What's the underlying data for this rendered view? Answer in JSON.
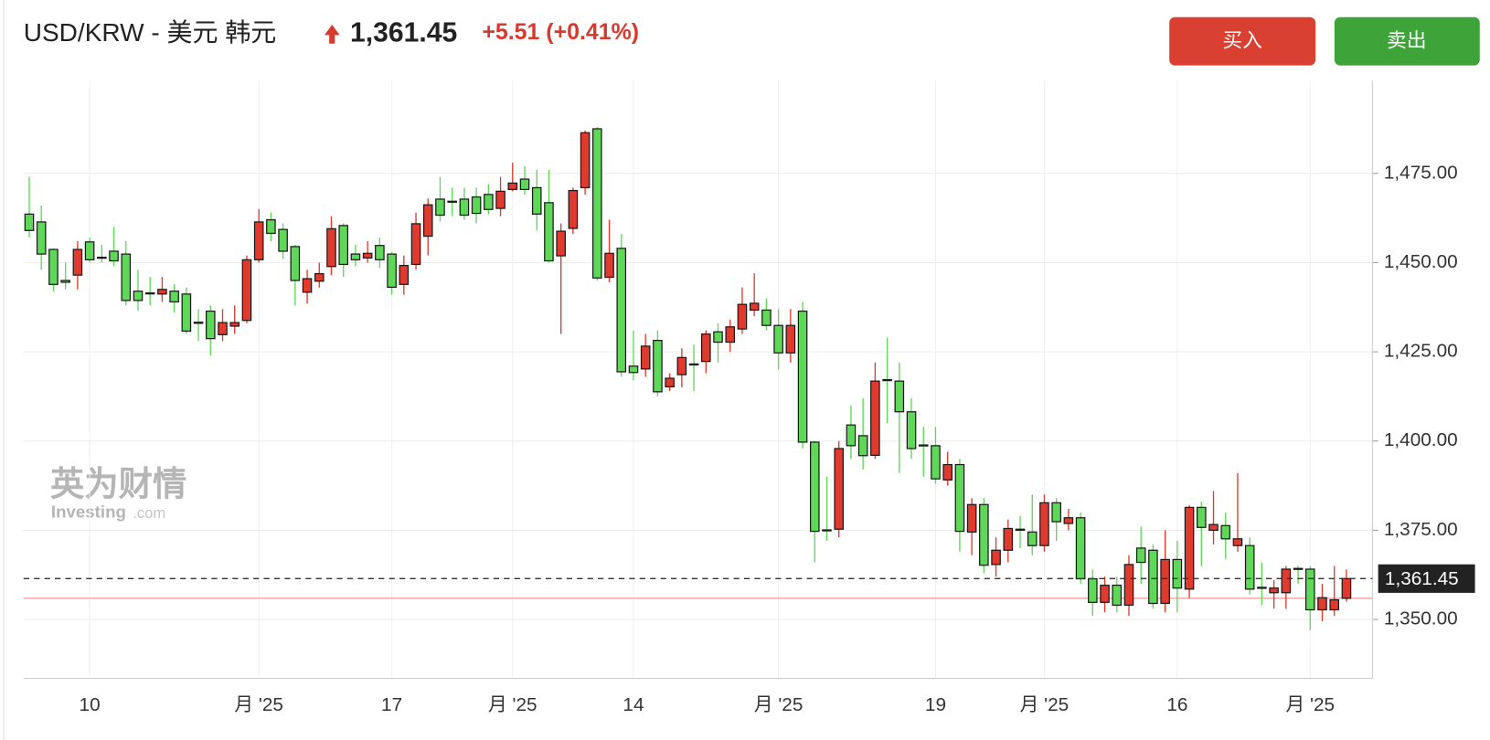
{
  "header": {
    "title": "USD/KRW - 美元 韩元",
    "price": "1,361.45",
    "change": "+5.51 (+0.41%)"
  },
  "buttons": [
    "买入",
    "卖出"
  ],
  "watermark": {
    "cn": "英为财情",
    "en": "Investing",
    "suffix": ".com"
  },
  "chart_data": {
    "type": "candlestick",
    "categories": [
      null,
      null,
      null,
      null,
      null,
      "10",
      null,
      null,
      null,
      null,
      null,
      null,
      null,
      null,
      null,
      null,
      null,
      null,
      null,
      "月 '25",
      null,
      null,
      null,
      null,
      null,
      null,
      null,
      null,
      null,
      null,
      "17",
      null,
      null,
      null,
      null,
      null,
      null,
      null,
      null,
      null,
      "月 '25",
      null,
      null,
      null,
      null,
      null,
      null,
      null,
      null,
      null,
      "14",
      null,
      null,
      null,
      null,
      null,
      null,
      null,
      null,
      null,
      null,
      null,
      "月 '25",
      null,
      null,
      null,
      null,
      null,
      null,
      null,
      null,
      null,
      null,
      null,
      null,
      "19",
      null,
      null,
      null,
      null,
      null,
      null,
      null,
      null,
      "月 '25",
      null,
      null,
      null,
      null,
      null,
      null,
      null,
      null,
      null,
      null,
      "16",
      null,
      null,
      null,
      null,
      null,
      null,
      null,
      null,
      null,
      null,
      "月 '25",
      null,
      null,
      null
    ],
    "open": [
      1463.6,
      1461.4,
      1453.7,
      1445,
      1446.5,
      1455.8,
      1451.5,
      1453.2,
      1452.4,
      1442,
      1441.5,
      1441.2,
      1442,
      1441.2,
      1433.3,
      1436.4,
      1429.8,
      1432.2,
      1433.8,
      1450.8,
      1462,
      1459.3,
      1454.5,
      1441.7,
      1444.8,
      1448.9,
      1460.4,
      1452.4,
      1451.3,
      1454.8,
      1452.4,
      1443.9,
      1449.5,
      1457.4,
      1467.8,
      1467.2,
      1467.8,
      1468.4,
      1469.1,
      1465.2,
      1470.5,
      1473.4,
      1471,
      1466.8,
      1451.9,
      1459.6,
      1471,
      1487.5,
      1445.9,
      1454,
      1421,
      1420.2,
      1428.2,
      1415.2,
      1418.6,
      1421.6,
      1422.3,
      1430.6,
      1427.7,
      1431.4,
      1436.7,
      1436.7,
      1432.4,
      1424.7,
      1436.4,
      1399.7,
      1375.1,
      1375.3,
      1404.5,
      1401.5,
      1396,
      1417.2,
      1416.8,
      1408.2,
      1398.9,
      1398.7,
      1389.1,
      1393.4,
      1374.5,
      1382.2,
      1365.4,
      1369.4,
      1375.3,
      1374.5,
      1370.7,
      1382.7,
      1376.9,
      1378.5,
      1361.4,
      1354.8,
      1359.6,
      1354,
      1370,
      1369.4,
      1354.5,
      1366.8,
      1358.5,
      1381.4,
      1375,
      1376.3,
      1370.7,
      1370.7,
      1359,
      1357.5,
      1357.5,
      1364.3,
      1364.1,
      1352.7,
      1352.7,
      1355.94
    ],
    "high": [
      1474,
      1466,
      1454,
      1450,
      1456,
      1457,
      1455,
      1460,
      1456,
      1448,
      1446,
      1446,
      1444,
      1443,
      1437,
      1438,
      1437,
      1438,
      1452,
      1465,
      1464,
      1461,
      1455,
      1448,
      1450,
      1463,
      1461,
      1455,
      1456,
      1457,
      1453,
      1452,
      1464,
      1468,
      1474,
      1471,
      1471,
      1471,
      1472,
      1474,
      1478,
      1477,
      1476,
      1476,
      1461,
      1471,
      1487,
      1488,
      1462,
      1458,
      1431,
      1430,
      1431,
      1419,
      1426,
      1427,
      1431,
      1433,
      1434,
      1443,
      1447,
      1440,
      1437,
      1437,
      1439,
      1400,
      1390,
      1400,
      1410,
      1412,
      1422,
      1429,
      1422,
      1412,
      1404,
      1404,
      1397,
      1395,
      1384,
      1384,
      1373,
      1378,
      1379,
      1385,
      1385,
      1384,
      1381,
      1380,
      1364,
      1362,
      1362,
      1368,
      1376,
      1371,
      1375,
      1372,
      1382,
      1383,
      1386,
      1380,
      1391,
      1373,
      1366,
      1361,
      1365,
      1365,
      1365,
      1360,
      1365,
      1364
    ],
    "low": [
      1457,
      1448,
      1442,
      1442.5,
      1442.5,
      1450,
      1450,
      1449,
      1438,
      1436.5,
      1438,
      1439,
      1436,
      1430,
      1428,
      1424,
      1428,
      1430,
      1433,
      1450,
      1456,
      1451,
      1438,
      1438.5,
      1443,
      1446.5,
      1446,
      1449,
      1450,
      1448.5,
      1441,
      1441,
      1448,
      1452,
      1461.5,
      1463,
      1462,
      1461,
      1463.5,
      1463,
      1470,
      1469,
      1459,
      1450,
      1430,
      1458,
      1469,
      1445,
      1444.5,
      1418,
      1417,
      1418,
      1412.5,
      1414,
      1415,
      1414,
      1419,
      1422,
      1425,
      1430,
      1435,
      1431,
      1420,
      1422,
      1398,
      1366,
      1372,
      1373,
      1395,
      1392,
      1395,
      1405,
      1391,
      1395,
      1390,
      1388,
      1387.5,
      1369,
      1368,
      1363,
      1362,
      1366,
      1370,
      1368,
      1369,
      1372,
      1375,
      1360,
      1351,
      1352,
      1352,
      1351,
      1360,
      1353,
      1352,
      1352,
      1356,
      1365,
      1371,
      1367,
      1369,
      1357,
      1354,
      1353,
      1353,
      1360,
      1347,
      1349.5,
      1351,
      1355
    ],
    "close": [
      1459,
      1452.4,
      1443.9,
      1444.5,
      1453.7,
      1450.8,
      1451.3,
      1450.5,
      1439.4,
      1439.4,
      1441.3,
      1442.5,
      1439,
      1430.8,
      1433,
      1428.7,
      1433.2,
      1433.2,
      1450.8,
      1461.4,
      1458.2,
      1453.2,
      1445,
      1445.5,
      1446.9,
      1459.5,
      1449.5,
      1450.8,
      1452.6,
      1450.8,
      1443.1,
      1449.2,
      1460.9,
      1466.2,
      1463.3,
      1467,
      1463.3,
      1463.8,
      1464.9,
      1470,
      1472.3,
      1470.5,
      1463.6,
      1450.5,
      1458.8,
      1470.2,
      1486.4,
      1445.7,
      1452.6,
      1419.4,
      1419.2,
      1426.6,
      1413.8,
      1417.6,
      1423.4,
      1421.4,
      1430,
      1427.7,
      1432,
      1438.3,
      1438.6,
      1432.4,
      1424.7,
      1432.4,
      1399.7,
      1374.7,
      1375,
      1397.9,
      1398.7,
      1395.9,
      1416.8,
      1417,
      1408.2,
      1397.9,
      1398.7,
      1389.4,
      1393.4,
      1374.7,
      1382.2,
      1365.2,
      1369.4,
      1375.5,
      1375,
      1370.7,
      1382.7,
      1377.4,
      1378.5,
      1361.4,
      1354.8,
      1359.6,
      1354,
      1365.4,
      1366,
      1354.5,
      1366.8,
      1358.8,
      1381.4,
      1375.8,
      1376.6,
      1372.6,
      1372.6,
      1358.5,
      1358.8,
      1358.8,
      1364.1,
      1364.1,
      1352.7,
      1356.1,
      1355.5,
      1361.45
    ],
    "up_color": "#e03a2f",
    "down_color": "#5fd85a",
    "ylim": [
      1333.5,
      1501
    ],
    "yticks": [
      {
        "value": 1350,
        "label": "1,350.00"
      },
      {
        "value": 1375,
        "label": "1,375.00"
      },
      {
        "value": 1400,
        "label": "1,400.00"
      },
      {
        "value": 1425,
        "label": "1,425.00"
      },
      {
        "value": 1450,
        "label": "1,450.00"
      },
      {
        "value": 1475,
        "label": "1,475.00"
      }
    ],
    "last_price": {
      "value": 1361.45,
      "label": "1,361.45"
    },
    "grid": true
  }
}
